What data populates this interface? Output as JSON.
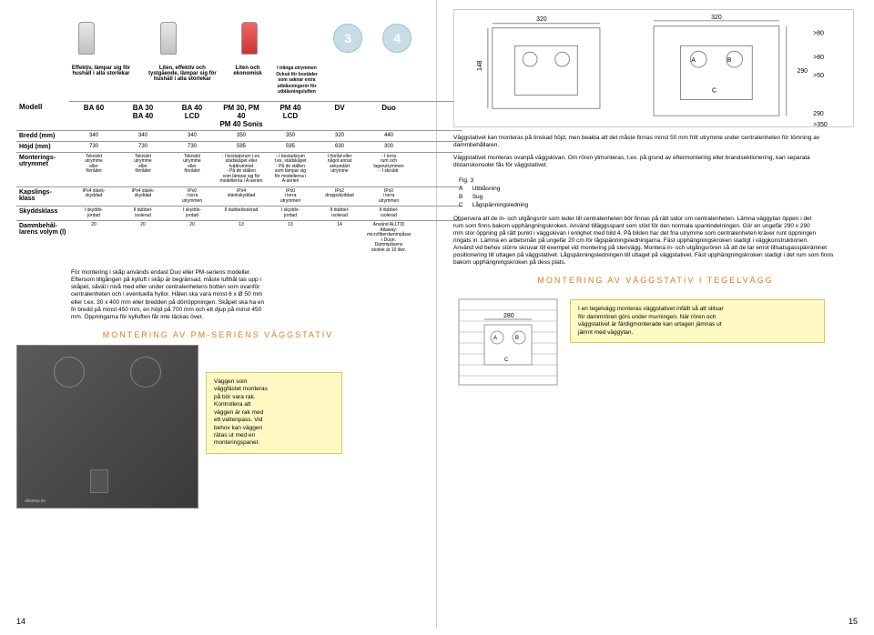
{
  "top_headers": [
    {
      "img": "vac",
      "text": "Effektiv,\nlämpar sig för hushåll\ni alla storlekar"
    },
    {
      "img": "vac",
      "text": ""
    },
    {
      "img": "vac",
      "text": "Liten,\neffektiv och\ntystgående,\nlämpar sig för\nhushåll i alla\nstorlekar"
    },
    {
      "img": "",
      "text": ""
    },
    {
      "img": "vac-red",
      "text": "Liten och\nekonomisk"
    },
    {
      "img": "",
      "text": "I trånga\nutrymmen\nOckså för bostäder\nsom saknar extra\nutblåsningsrör för\nutblåsningsluften"
    },
    {
      "img": "circle",
      "num": "3"
    },
    {
      "img": "circle",
      "num": "4"
    }
  ],
  "rows": [
    {
      "label": "Modell",
      "cells": [
        "BA 60",
        "BA 30\nBA 40",
        "BA 40\nLCD",
        "PM 30, PM 40\nPM 40 Sonis",
        "PM 40\nLCD",
        "DV",
        "Duo"
      ]
    },
    {
      "label": "Bredd (mm)",
      "cells": [
        "340",
        "340",
        "340",
        "350",
        "350",
        "320",
        "440"
      ]
    },
    {
      "label": "Höjd (mm)",
      "cells": [
        "730",
        "730",
        "730",
        "595",
        "595",
        "630",
        "300"
      ]
    },
    {
      "label": "Monterings-\nutrymmet",
      "cells": [
        "Tekniskt\nutrymme\neller\nförrådet",
        "Tekniskt\nutrymme\neller\nförrådet",
        "Tekniskt\nutrymme\neller\nförrådet",
        "- I bostadsrum t.ex.\nstädskåpet eller\ntvättrummet\n- På de ställen\nsom lämpar sig för\nmodellerna i A-serien",
        "- I bostadsrum\nt.ex. städskåpet\n- På de ställen\nsom lämpar sig\nför modellerna i\nA-serien",
        "I förråd eller\nnågot annat\nsekundärt\nutrymme",
        "- I torra\nrum och\nlagerutrymmen\n- I skrubb"
      ]
    },
    {
      "label": "Kapslings-\nklass",
      "cells": [
        "IPx4 stänk-\nskyddad",
        "IPx4 stänk-\nskyddad",
        "IPx0\ni torra\nutrymmen",
        "IPx4\nstänkskyddad",
        "IPx0\ni torra\nutrymmen",
        "IPx2\ndroppskyddad",
        "IPx0\ni torra\nutrymmen"
      ]
    },
    {
      "label": "Skyddsklass",
      "cells": [
        "I skydds-\njordad",
        "II dubbel-\nisolerad",
        "I skydds-\njordad",
        "II dubbelisolerad",
        "I skydds-\njordad",
        "II dubbel-\nisolerad",
        "II dubbel-\nisolerad"
      ]
    },
    {
      "label": "Dammbehål-\nlarens volym (l)",
      "cells": [
        "20",
        "20",
        "20",
        "13",
        "13",
        "14",
        "Använd ALLTID Allaway-\nmicrofiberdammpåsar\ni Duon. Dammpåsens\nstorlek är 10 liter."
      ]
    }
  ],
  "mount_text": "För montering i skåp används endast Duo eller PM-seriens modeller.\nEftersom tillgången på kylluft i skåp är begränsad, måste lufthål tas upp i\nskåpet, såväl i nivå med eller under centralenhetens botten som ovanför\ncentralenheten och i eventuella hyllor. Hålen ska vara minst 6 x Ø 50 mm\neller t.ex. 30 x 400 mm eller bredden på dörröppningen. Skåpet ska ha en\nfri bredd på minst 450 mm, en höjd på 700 mm och ett djup på minst 450\nmm. Öppningarna för kylluften får inte täckas över.",
  "section_pm": "MONTERING AV PM-SERIENS VÄGGSTATIV",
  "yellow1": "Väggen som\nväggfästet monteras\npå bör vara rak.\nKontrollera att\nväggen är rak med\nett vattenpass. Vid\nbehov kan väggen\nrätas ut med en\nmonteringspanel.",
  "right_text1": "Väggstativet kan monteras på önskad höjd, men beakta att det måste finnas minst 50 mm fritt utrymme under centralenheten för tömning av\ndammbehållaren.",
  "right_text2": "Väggstativet monteras ovanpå väggskivan. Om rören ytmonteras, t.ex. på grund av eftermontering eller brandsektionering, kan separata\ndistanskonsoler fås för väggstativet.",
  "fig3": {
    "title": "Fig. 3",
    "rows": [
      [
        "A",
        "Utblåsning"
      ],
      [
        "B",
        "Sug"
      ],
      [
        "C",
        "Lågspänningsledning"
      ]
    ]
  },
  "right_text3": "Observera att de in- och utgångsrör som leder till centralenheten bör finnas på rätt sidor om centralenheten. Lämna väggytan öppen i det\nrum som finns bakom upphängningskroken. Använd tilläggsspant som stöd för den normala spantindelningen. Gör en ungefär 290 x 290\nmm stor öppning på rätt punkt i väggskivan i enlighet med bild 4. På bilden har det fria utrymme som centralenheten kräver runt öppningen\nringats in. Lämna en arbetsmån på ungefär 20 cm för lågspänningsledningarna. Fäst upphängningskroken stadigt i väggkonstruktionen.\nAnvänd vid behov större skruvar till exempel vid montering på stenvägg. Montera in- och utgångsrören så att de tar emot tillsatsgasspärrämnet positionering till uttagen på väggstativet. Lågspänningsledningen till uttaget på väggstativet. Fäst upphängningskroken stadigt i det rum som finns\nbakom upphängningskroken på dess plats.",
  "section_tegel": "MONTERING AV VÄGGSTATIV I TEGELVÄGG",
  "yellow2": "I en tegelvägg monteras väggstativet infällt så att slitsar\nför dammrören görs under murningen. När rören och\nväggstativet är färdigmonterade kan urtagen jämnas ut\njämnt med väggytan.",
  "diagram_labels": {
    "d320a": "320",
    "d320b": "320",
    "d290a": "290",
    "d290b": "290",
    "d148": "148",
    "dgt80a": ">80",
    "dgt80b": ">80",
    "dgt50": ">50",
    "dgt350": ">350",
    "dA": "A",
    "dB": "B",
    "dC": "C",
    "d280": "280"
  },
  "pageL": "14",
  "pageR": "15"
}
